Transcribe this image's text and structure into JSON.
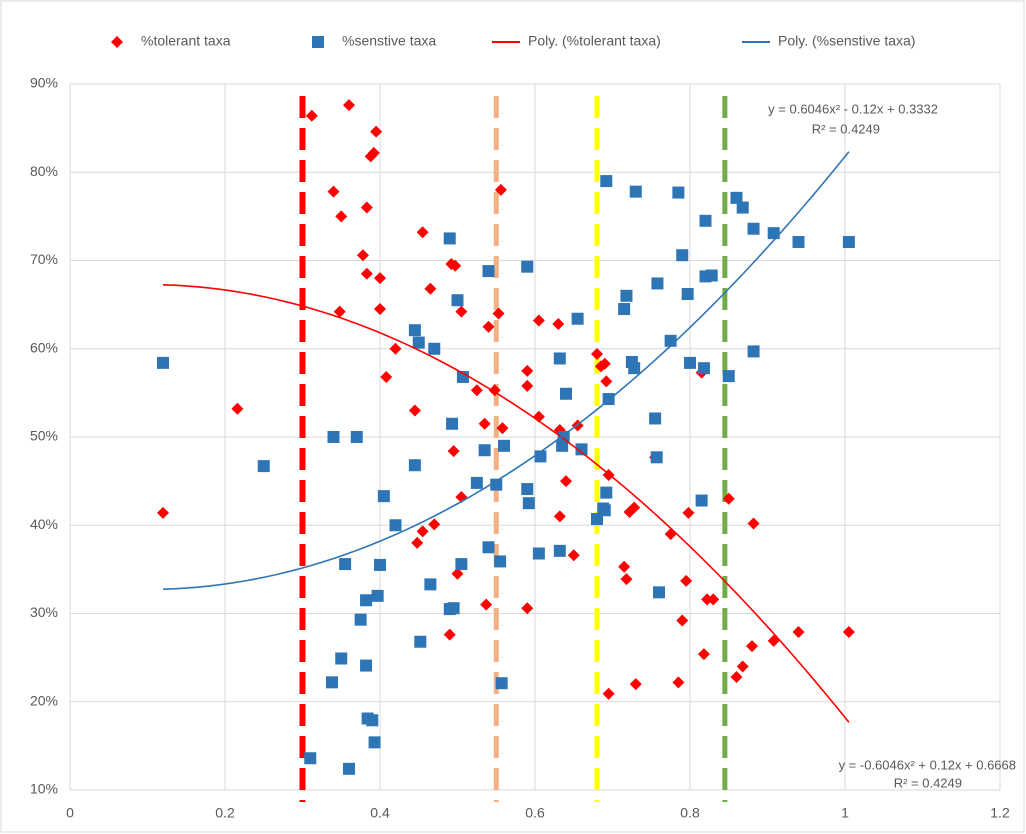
{
  "chart_data": {
    "type": "scatter",
    "series": [
      {
        "name": "%tolerant taxa",
        "color": "#ff0000",
        "marker": "diamond",
        "x": [
          0.12,
          0.216,
          0.312,
          0.36,
          0.34,
          0.35,
          0.383,
          0.388,
          0.392,
          0.395,
          0.348,
          0.383,
          0.378,
          0.4,
          0.4,
          0.408,
          0.42,
          0.445,
          0.448,
          0.455,
          0.455,
          0.465,
          0.47,
          0.49,
          0.492,
          0.497,
          0.495,
          0.5,
          0.505,
          0.505,
          0.525,
          0.535,
          0.537,
          0.54,
          0.548,
          0.553,
          0.556,
          0.558,
          0.59,
          0.59,
          0.59,
          0.605,
          0.605,
          0.63,
          0.632,
          0.632,
          0.64,
          0.65,
          0.655,
          0.68,
          0.685,
          0.69,
          0.692,
          0.695,
          0.695,
          0.715,
          0.718,
          0.722,
          0.728,
          0.73,
          0.755,
          0.775,
          0.785,
          0.79,
          0.795,
          0.798,
          0.815,
          0.818,
          0.822,
          0.83,
          0.85,
          0.86,
          0.868,
          0.88,
          0.882,
          0.908,
          0.94,
          1.005
        ],
        "values": [
          0.414,
          0.532,
          0.864,
          0.876,
          0.778,
          0.75,
          0.76,
          0.818,
          0.822,
          0.846,
          0.642,
          0.685,
          0.706,
          0.68,
          0.645,
          0.568,
          0.6,
          0.53,
          0.38,
          0.393,
          0.732,
          0.668,
          0.401,
          0.276,
          0.696,
          0.694,
          0.484,
          0.345,
          0.642,
          0.432,
          0.553,
          0.515,
          0.31,
          0.625,
          0.553,
          0.64,
          0.78,
          0.51,
          0.306,
          0.575,
          0.558,
          0.632,
          0.523,
          0.628,
          0.508,
          0.41,
          0.45,
          0.366,
          0.513,
          0.594,
          0.58,
          0.583,
          0.563,
          0.457,
          0.209,
          0.353,
          0.339,
          0.415,
          0.42,
          0.22,
          0.477,
          0.39,
          0.222,
          0.292,
          0.337,
          0.414,
          0.573,
          0.254,
          0.316,
          0.316,
          0.43,
          0.228,
          0.24,
          0.263,
          0.402,
          0.269,
          0.279,
          0.279
        ]
      },
      {
        "name": "%senstive taxa",
        "color": "#2e75b6",
        "marker": "square",
        "x": [
          0.12,
          0.25,
          0.31,
          0.34,
          0.338,
          0.35,
          0.355,
          0.36,
          0.37,
          0.375,
          0.382,
          0.382,
          0.384,
          0.39,
          0.393,
          0.397,
          0.4,
          0.405,
          0.42,
          0.445,
          0.445,
          0.45,
          0.452,
          0.465,
          0.47,
          0.49,
          0.49,
          0.493,
          0.495,
          0.5,
          0.505,
          0.507,
          0.525,
          0.535,
          0.54,
          0.54,
          0.55,
          0.555,
          0.557,
          0.56,
          0.59,
          0.59,
          0.592,
          0.605,
          0.607,
          0.632,
          0.632,
          0.635,
          0.637,
          0.64,
          0.655,
          0.66,
          0.68,
          0.688,
          0.69,
          0.692,
          0.692,
          0.695,
          0.715,
          0.718,
          0.725,
          0.728,
          0.73,
          0.755,
          0.757,
          0.758,
          0.76,
          0.775,
          0.785,
          0.79,
          0.797,
          0.8,
          0.815,
          0.818,
          0.82,
          0.82,
          0.828,
          0.85,
          0.86,
          0.868,
          0.882,
          0.882,
          0.908,
          0.94,
          1.005
        ],
        "values": [
          0.584,
          0.467,
          0.136,
          0.5,
          0.222,
          0.249,
          0.356,
          0.124,
          0.5,
          0.293,
          0.315,
          0.241,
          0.181,
          0.179,
          0.154,
          0.32,
          0.355,
          0.433,
          0.4,
          0.621,
          0.468,
          0.607,
          0.268,
          0.333,
          0.6,
          0.725,
          0.305,
          0.515,
          0.306,
          0.655,
          0.356,
          0.568,
          0.448,
          0.485,
          0.688,
          0.375,
          0.446,
          0.359,
          0.221,
          0.49,
          0.693,
          0.441,
          0.425,
          0.368,
          0.478,
          0.589,
          0.371,
          0.49,
          0.5,
          0.549,
          0.634,
          0.486,
          0.407,
          0.419,
          0.417,
          0.437,
          0.79,
          0.543,
          0.645,
          0.66,
          0.585,
          0.578,
          0.778,
          0.521,
          0.477,
          0.674,
          0.324,
          0.609,
          0.777,
          0.706,
          0.662,
          0.584,
          0.428,
          0.578,
          0.745,
          0.682,
          0.683,
          0.569,
          0.771,
          0.76,
          0.597,
          0.736,
          0.731,
          0.721,
          0.721
        ]
      }
    ],
    "trendlines": [
      {
        "name": "Poly. (%tolerant taxa)",
        "color": "#ff0000",
        "coefficients": [
          -0.6046,
          0.12,
          0.6668
        ],
        "equation": "y = -0.6046x² + 0.12x + 0.6668",
        "r_squared": "R² = 0.4249"
      },
      {
        "name": "Poly. (%senstive taxa)",
        "color": "#2e75b6",
        "coefficients": [
          0.6046,
          -0.12,
          0.3332
        ],
        "equation": "y = 0.6046x² - 0.12x + 0.3332",
        "r_squared": "R² = 0.4249"
      }
    ],
    "reference_lines": [
      {
        "x": 0.3,
        "color": "#ff0000"
      },
      {
        "x": 0.55,
        "color": "#f4b183"
      },
      {
        "x": 0.68,
        "color": "#ffff00"
      },
      {
        "x": 0.845,
        "color": "#70ad47"
      }
    ],
    "xlim": [
      0,
      1.2
    ],
    "xticks": [
      0,
      0.2,
      0.4,
      0.6,
      0.8,
      1,
      1.2
    ],
    "ylim": [
      0.1,
      0.9
    ],
    "yticks": [
      {
        "value": 0.1,
        "label": "10%"
      },
      {
        "value": 0.2,
        "label": "20%"
      },
      {
        "value": 0.3,
        "label": "30%"
      },
      {
        "value": 0.4,
        "label": "40%"
      },
      {
        "value": 0.5,
        "label": "50%"
      },
      {
        "value": 0.6,
        "label": "60%"
      },
      {
        "value": 0.7,
        "label": "70%"
      },
      {
        "value": 0.8,
        "label": "80%"
      },
      {
        "value": 0.9,
        "label": "90%"
      }
    ],
    "grid": true,
    "legend": "top"
  }
}
